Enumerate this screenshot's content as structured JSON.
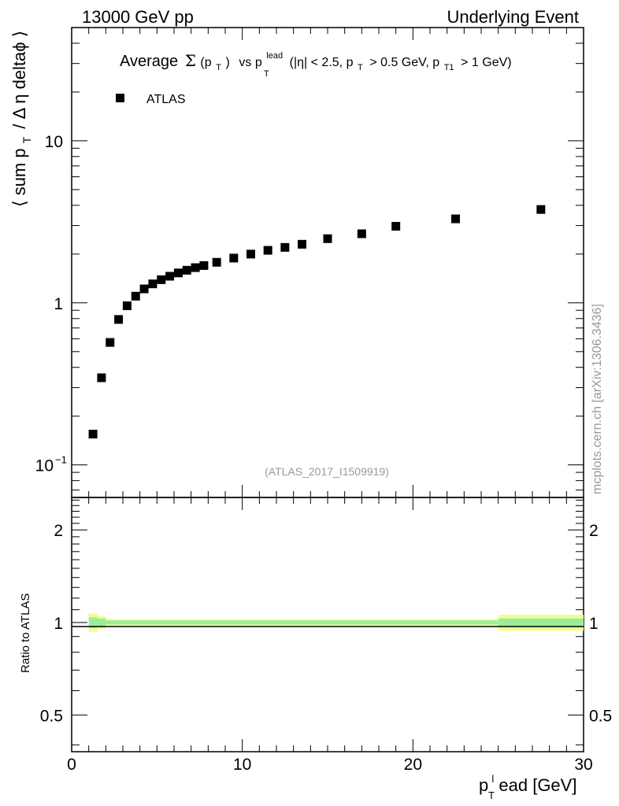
{
  "header": {
    "left": "13000 GeV pp",
    "right": "Underlying Event"
  },
  "plot_title": {
    "prefix": "Average",
    "sigma": "Σ",
    "pt_paren": "(p",
    "pt_sub": "T",
    "pt_close": ")",
    "vs": "vs p",
    "lead_sup": "lead",
    "lead_sub": "T",
    "cut1": "(|η| < 2.5, p",
    "cut1_sub": "T",
    "cut2": "> 0.5 GeV, p",
    "cut2_sub": "T1",
    "cut3": "> 1 GeV)"
  },
  "legend": {
    "label": "ATLAS",
    "position": "top-left"
  },
  "watermark": "(ATLAS_2017_I1509919)",
  "side_text": "mcplots.cern.ch [arXiv:1306.3436]",
  "y_label": {
    "open": "⟨ sum p",
    "sub": "T",
    "rest": "/ Δ η deltaϕ ⟩"
  },
  "ratio_label": "Ratio to ATLAS",
  "x_label": {
    "base": "p",
    "sub": "T",
    "sup": "l",
    "rest": "ead [GeV]"
  },
  "colors": {
    "marker": "#000000",
    "band_outer": "#f0ff90",
    "band_inner": "#99ee99",
    "ratio_line": "#000000"
  },
  "chart_data": {
    "type": "scatter",
    "x_range": [
      0,
      30
    ],
    "y_range": [
      0.063,
      50
    ],
    "y_scale": "log",
    "x_ticks": [
      "0",
      "10",
      "20",
      "30"
    ],
    "y_ticks": [
      {
        "value": 0.1,
        "label": "10",
        "sup": "−1"
      },
      {
        "value": 1,
        "label": "1",
        "sup": ""
      },
      {
        "value": 10,
        "label": "10",
        "sup": ""
      }
    ],
    "series": [
      {
        "name": "ATLAS",
        "x": [
          1.25,
          1.75,
          2.25,
          2.75,
          3.25,
          3.75,
          4.25,
          4.75,
          5.25,
          5.75,
          6.25,
          6.75,
          7.25,
          7.75,
          8.5,
          9.5,
          10.5,
          11.5,
          12.5,
          13.5,
          15,
          17,
          19,
          22.5,
          27.5
        ],
        "y": [
          0.155,
          0.345,
          0.57,
          0.79,
          0.96,
          1.1,
          1.22,
          1.31,
          1.39,
          1.46,
          1.53,
          1.59,
          1.65,
          1.7,
          1.78,
          1.89,
          2.0,
          2.11,
          2.2,
          2.3,
          2.49,
          2.67,
          2.97,
          3.3,
          3.77
        ]
      }
    ],
    "ratio": {
      "y_range": [
        0.38,
        2.55
      ],
      "y_scale": "log",
      "y_ticks": [
        {
          "value": 0.5,
          "label": "0.5"
        },
        {
          "value": 1,
          "label": "1"
        },
        {
          "value": 2,
          "label": "2"
        }
      ],
      "band_bins": [
        {
          "x0": 1,
          "x1": 1.5,
          "outer": 0.07,
          "inner": 0.04
        },
        {
          "x0": 1.5,
          "x1": 2,
          "outer": 0.05,
          "inner": 0.03
        },
        {
          "x0": 2,
          "x1": 25,
          "outer": 0.025,
          "inner": 0.015
        },
        {
          "x0": 25,
          "x1": 30,
          "outer": 0.06,
          "inner": 0.03
        }
      ]
    }
  }
}
